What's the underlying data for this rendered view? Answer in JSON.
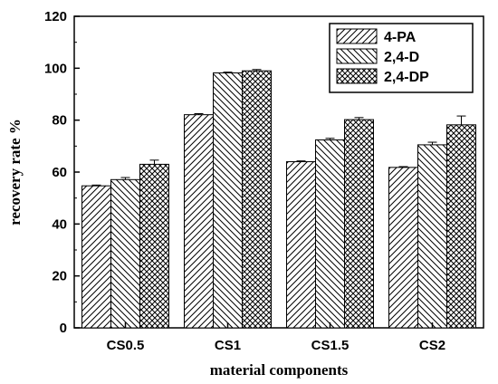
{
  "chart_data": {
    "type": "bar",
    "categories": [
      "CS0.5",
      "CS1",
      "CS1.5",
      "CS2"
    ],
    "series": [
      {
        "name": "4-PA",
        "pattern": "diag-forward",
        "values": [
          54.7,
          82.1,
          64.0,
          61.8
        ],
        "errors": [
          0.3,
          0.4,
          0.3,
          0.3
        ]
      },
      {
        "name": "2,4-D",
        "pattern": "diag-backward",
        "values": [
          57.1,
          98.2,
          72.4,
          70.5
        ],
        "errors": [
          0.8,
          0.3,
          0.6,
          1.0
        ]
      },
      {
        "name": "2,4-DP",
        "pattern": "crosshatch",
        "values": [
          63.0,
          99.0,
          80.2,
          78.2
        ],
        "errors": [
          1.6,
          0.5,
          0.8,
          3.4
        ]
      }
    ],
    "xlabel": "material components",
    "ylabel": "recovery rate %",
    "ylim": [
      0,
      120
    ],
    "yticks": [
      0,
      20,
      40,
      60,
      80,
      100,
      120
    ],
    "grid": false,
    "legend_position": "top-right",
    "bar_color": "#000000",
    "background": "#ffffff"
  }
}
